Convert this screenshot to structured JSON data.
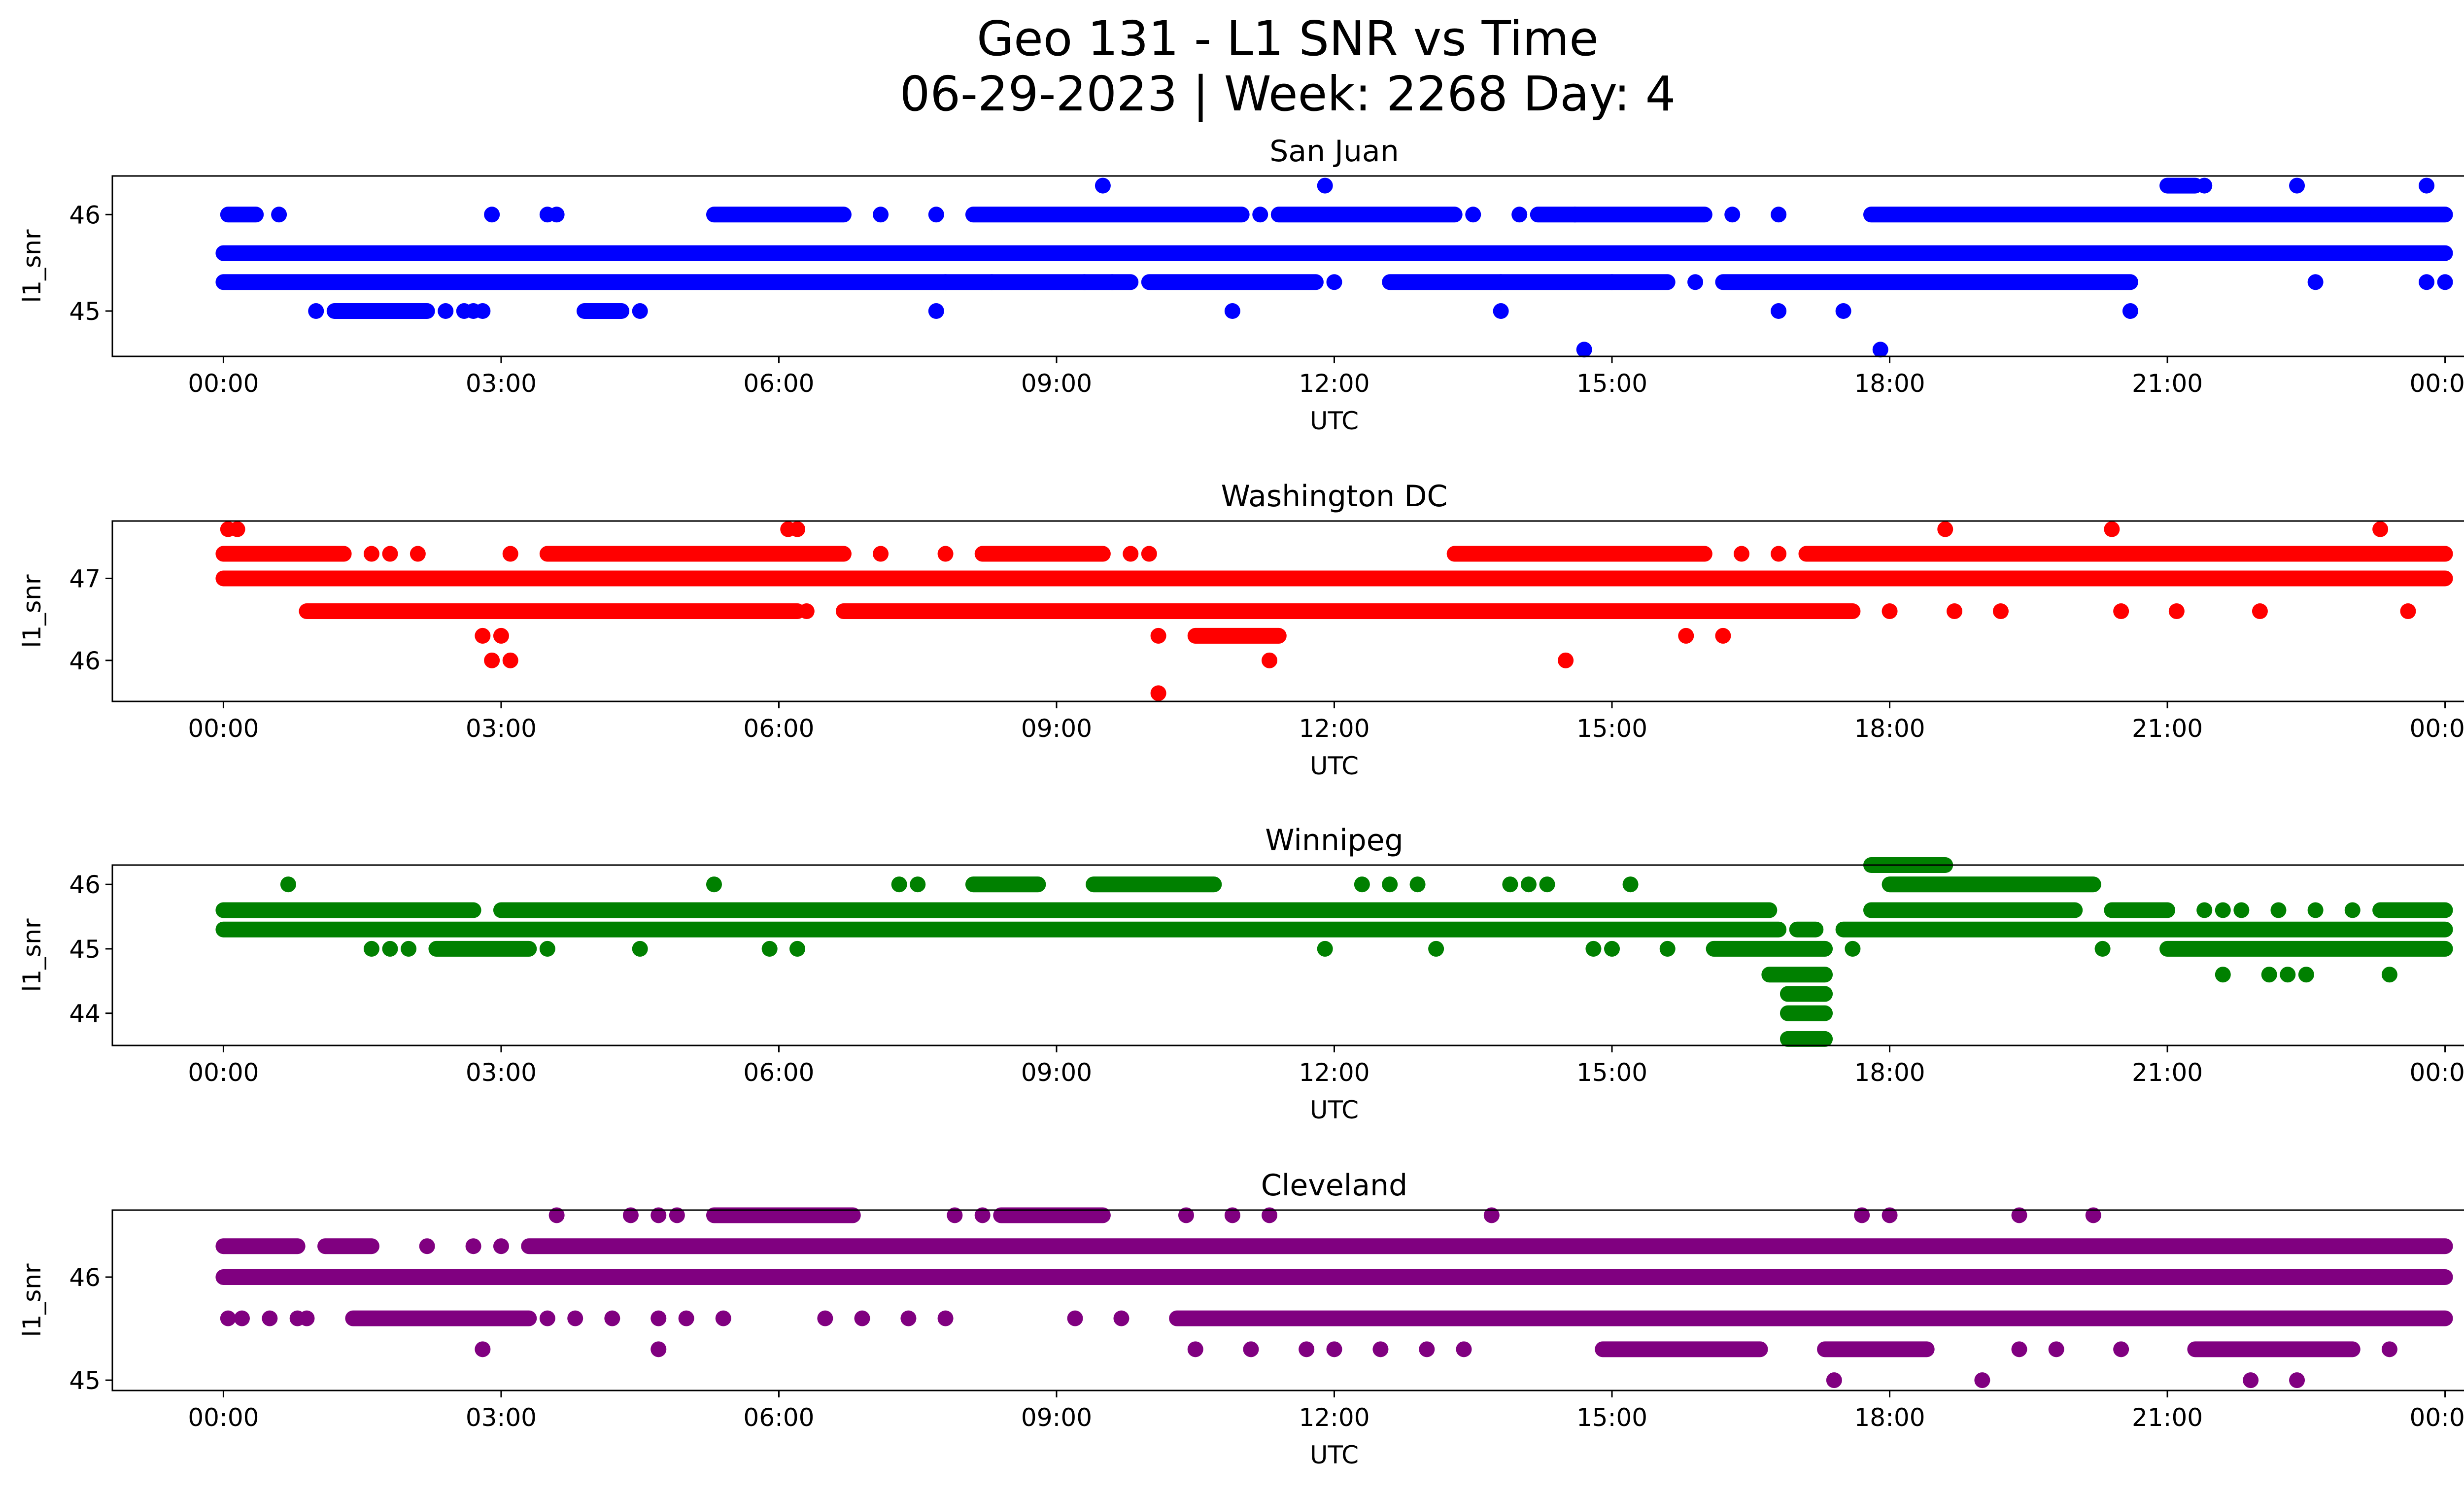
{
  "figure": {
    "title_line1": "Geo 131 - L1 SNR vs Time",
    "title_line2": "06-29-2023 | Week: 2268 Day: 4"
  },
  "chart_data": [
    {
      "type": "scatter",
      "title": "San Juan",
      "xlabel": "UTC",
      "ylabel": "l1_snr",
      "color": "#0000ff",
      "x_unit": "hours UTC",
      "xlim": [
        -1.2,
        25.2
      ],
      "ylim": [
        44.53,
        46.4
      ],
      "xticks": [
        "00:00",
        "03:00",
        "06:00",
        "09:00",
        "12:00",
        "15:00",
        "18:00",
        "21:00",
        "00:00"
      ],
      "yticks": [
        45,
        46
      ],
      "grid": false,
      "series": [
        {
          "y": 45.6,
          "segments": [
            [
              0,
              24
            ]
          ]
        },
        {
          "y": 45.3,
          "segments": [
            [
              0,
              8.3
            ],
            [
              8.3,
              9.6
            ],
            [
              9.6,
              9.8
            ],
            [
              10.0,
              11.8
            ],
            [
              12.6,
              15.6
            ],
            [
              16.2,
              20.6
            ]
          ],
          "points": [
            [
              7.8
            ],
            [
              9.3
            ],
            [
              12.0
            ],
            [
              13.8
            ],
            [
              15.0
            ],
            [
              15.9
            ],
            [
              22.6
            ],
            [
              23.8
            ],
            [
              24.0
            ]
          ]
        },
        {
          "y": 46.0,
          "segments": [
            [
              0.05,
              0.35
            ],
            [
              5.3,
              6.7
            ],
            [
              8.1,
              11.0
            ],
            [
              11.4,
              13.3
            ],
            [
              14.2,
              16.0
            ],
            [
              17.8,
              24.0
            ]
          ],
          "points": [
            [
              0.6
            ],
            [
              2.9
            ],
            [
              3.5
            ],
            [
              3.6
            ],
            [
              7.1
            ],
            [
              7.7
            ],
            [
              11.2
            ],
            [
              13.5
            ],
            [
              14.0
            ],
            [
              14.6
            ],
            [
              16.3
            ],
            [
              16.8
            ]
          ]
        },
        {
          "y": 45.0,
          "segments": [
            [
              1.2,
              2.2
            ],
            [
              3.9,
              4.3
            ]
          ],
          "points": [
            [
              1.0
            ],
            [
              2.4
            ],
            [
              2.6
            ],
            [
              2.7
            ],
            [
              2.8
            ],
            [
              4.5
            ],
            [
              7.7
            ],
            [
              10.9
            ],
            [
              13.8
            ],
            [
              16.8
            ],
            [
              17.5
            ],
            [
              20.6
            ]
          ]
        },
        {
          "y": 46.3,
          "segments": [
            [
              21.0,
              21.3
            ]
          ],
          "points": [
            [
              9.5
            ],
            [
              11.9
            ],
            [
              21.4
            ],
            [
              22.4
            ],
            [
              23.8
            ]
          ]
        },
        {
          "y": 44.6,
          "points": [
            [
              14.7
            ],
            [
              17.9
            ]
          ]
        }
      ]
    },
    {
      "type": "scatter",
      "title": "Washington DC",
      "xlabel": "UTC",
      "ylabel": "l1_snr",
      "color": "#ff0000",
      "x_unit": "hours UTC",
      "xlim": [
        -1.2,
        25.2
      ],
      "ylim": [
        45.5,
        47.7
      ],
      "xticks": [
        "00:00",
        "03:00",
        "06:00",
        "09:00",
        "12:00",
        "15:00",
        "18:00",
        "21:00",
        "00:00"
      ],
      "yticks": [
        46,
        47
      ],
      "grid": false,
      "series": [
        {
          "y": 47.0,
          "segments": [
            [
              0,
              24
            ]
          ]
        },
        {
          "y": 47.3,
          "segments": [
            [
              0,
              1.3
            ],
            [
              3.5,
              6.7
            ],
            [
              8.2,
              9.5
            ],
            [
              13.3,
              16.0
            ],
            [
              17.1,
              24.0
            ]
          ],
          "points": [
            [
              1.6
            ],
            [
              1.8
            ],
            [
              2.1
            ],
            [
              3.1
            ],
            [
              7.1
            ],
            [
              7.8
            ],
            [
              9.8
            ],
            [
              10.0
            ],
            [
              16.4
            ],
            [
              16.8
            ]
          ]
        },
        {
          "y": 46.6,
          "segments": [
            [
              0.9,
              6.2
            ],
            [
              6.7,
              17.6
            ]
          ],
          "points": [
            [
              6.3
            ],
            [
              18.0
            ],
            [
              18.7
            ],
            [
              19.2
            ],
            [
              20.5
            ],
            [
              21.1
            ],
            [
              22.0
            ],
            [
              23.6
            ]
          ]
        },
        {
          "y": 46.3,
          "segments": [
            [
              10.5,
              11.4
            ]
          ],
          "points": [
            [
              2.8
            ],
            [
              3.0
            ],
            [
              10.1
            ],
            [
              15.8
            ],
            [
              16.2
            ]
          ]
        },
        {
          "y": 47.6,
          "points": [
            [
              0.05
            ],
            [
              0.15
            ],
            [
              6.1
            ],
            [
              6.2
            ],
            [
              18.6
            ],
            [
              20.4
            ],
            [
              23.3
            ]
          ]
        },
        {
          "y": 46.0,
          "points": [
            [
              2.9
            ],
            [
              3.1
            ],
            [
              11.3
            ],
            [
              14.5
            ]
          ]
        },
        {
          "y": 45.6,
          "points": [
            [
              10.1
            ]
          ]
        }
      ]
    },
    {
      "type": "scatter",
      "title": "Winnipeg",
      "xlabel": "UTC",
      "ylabel": "l1_snr",
      "color": "#008000",
      "x_unit": "hours UTC",
      "xlim": [
        -1.2,
        25.2
      ],
      "ylim": [
        43.5,
        46.3
      ],
      "xticks": [
        "00:00",
        "03:00",
        "06:00",
        "09:00",
        "12:00",
        "15:00",
        "18:00",
        "21:00",
        "00:00"
      ],
      "yticks": [
        44,
        45,
        46
      ],
      "grid": false,
      "series": [
        {
          "y": 45.6,
          "segments": [
            [
              0,
              2.7
            ],
            [
              3.0,
              16.7
            ],
            [
              17.8,
              20.0
            ],
            [
              20.4,
              21.0
            ],
            [
              23.3,
              24.0
            ]
          ],
          "points": [
            [
              21.4
            ],
            [
              21.6
            ],
            [
              21.8
            ],
            [
              22.2
            ],
            [
              22.6
            ],
            [
              23.0
            ]
          ]
        },
        {
          "y": 45.3,
          "segments": [
            [
              0,
              16.8
            ],
            [
              17.0,
              17.2
            ],
            [
              17.5,
              24.0
            ]
          ]
        },
        {
          "y": 45.0,
          "segments": [
            [
              2.3,
              3.3
            ],
            [
              16.1,
              17.3
            ],
            [
              21.0,
              24.0
            ]
          ],
          "points": [
            [
              1.6
            ],
            [
              1.8
            ],
            [
              2.0
            ],
            [
              3.5
            ],
            [
              4.5
            ],
            [
              5.9
            ],
            [
              6.2
            ],
            [
              11.9
            ],
            [
              13.1
            ],
            [
              14.8
            ],
            [
              15.0
            ],
            [
              15.6
            ],
            [
              17.6
            ],
            [
              20.3
            ]
          ]
        },
        {
          "y": 46.0,
          "segments": [
            [
              8.1,
              8.8
            ],
            [
              9.4,
              10.7
            ],
            [
              18.0,
              20.2
            ]
          ],
          "points": [
            [
              0.7
            ],
            [
              5.3
            ],
            [
              7.3
            ],
            [
              7.5
            ],
            [
              12.3
            ],
            [
              12.6
            ],
            [
              12.9
            ],
            [
              13.9
            ],
            [
              14.1
            ],
            [
              14.3
            ],
            [
              15.2
            ]
          ]
        },
        {
          "y": 46.3,
          "segments": [
            [
              17.8,
              18.6
            ]
          ]
        },
        {
          "y": 44.6,
          "segments": [
            [
              16.7,
              17.3
            ]
          ],
          "points": [
            [
              21.6
            ],
            [
              22.1
            ],
            [
              22.3
            ],
            [
              22.5
            ],
            [
              23.4
            ]
          ]
        },
        {
          "y": 44.3,
          "segments": [
            [
              16.9,
              17.3
            ]
          ]
        },
        {
          "y": 44.0,
          "segments": [
            [
              16.9,
              17.3
            ]
          ]
        },
        {
          "y": 43.6,
          "segments": [
            [
              16.9,
              17.3
            ]
          ]
        }
      ]
    },
    {
      "type": "scatter",
      "title": "Cleveland",
      "xlabel": "UTC",
      "ylabel": "l1_snr",
      "color": "#800080",
      "x_unit": "hours UTC",
      "xlim": [
        -1.2,
        25.2
      ],
      "ylim": [
        44.9,
        46.65
      ],
      "xticks": [
        "00:00",
        "03:00",
        "06:00",
        "09:00",
        "12:00",
        "15:00",
        "18:00",
        "21:00",
        "00:00"
      ],
      "yticks": [
        45,
        46
      ],
      "grid": false,
      "series": [
        {
          "y": 46.0,
          "segments": [
            [
              0,
              24
            ]
          ]
        },
        {
          "y": 46.3,
          "segments": [
            [
              0,
              0.8
            ],
            [
              1.1,
              1.6
            ],
            [
              3.3,
              24.0
            ]
          ],
          "points": [
            [
              2.2
            ],
            [
              2.7
            ],
            [
              3.0
            ]
          ]
        },
        {
          "y": 45.6,
          "segments": [
            [
              1.4,
              3.3
            ],
            [
              10.3,
              24.0
            ]
          ],
          "points": [
            [
              0.05
            ],
            [
              0.2
            ],
            [
              0.5
            ],
            [
              0.8
            ],
            [
              0.9
            ],
            [
              3.5
            ],
            [
              3.8
            ],
            [
              4.2
            ],
            [
              4.7
            ],
            [
              5.0
            ],
            [
              5.4
            ],
            [
              6.5
            ],
            [
              6.9
            ],
            [
              7.4
            ],
            [
              7.8
            ],
            [
              9.2
            ],
            [
              9.7
            ]
          ]
        },
        {
          "y": 46.6,
          "segments": [
            [
              5.3,
              6.8
            ],
            [
              8.4,
              9.5
            ]
          ],
          "points": [
            [
              3.6
            ],
            [
              4.4
            ],
            [
              4.7
            ],
            [
              4.9
            ],
            [
              7.9
            ],
            [
              8.2
            ],
            [
              10.4
            ],
            [
              10.9
            ],
            [
              11.3
            ],
            [
              13.7
            ],
            [
              17.7
            ],
            [
              18.0
            ],
            [
              19.4
            ],
            [
              20.2
            ]
          ]
        },
        {
          "y": 45.3,
          "segments": [
            [
              14.9,
              16.6
            ],
            [
              17.3,
              18.4
            ],
            [
              21.3,
              23.0
            ]
          ],
          "points": [
            [
              2.8
            ],
            [
              4.7
            ],
            [
              10.5
            ],
            [
              11.1
            ],
            [
              11.7
            ],
            [
              12.0
            ],
            [
              12.5
            ],
            [
              13.0
            ],
            [
              13.4
            ],
            [
              19.4
            ],
            [
              19.8
            ],
            [
              20.5
            ],
            [
              23.4
            ]
          ]
        },
        {
          "y": 45.0,
          "points": [
            [
              17.4
            ],
            [
              19.0
            ],
            [
              21.9
            ],
            [
              22.4
            ]
          ]
        }
      ]
    }
  ]
}
